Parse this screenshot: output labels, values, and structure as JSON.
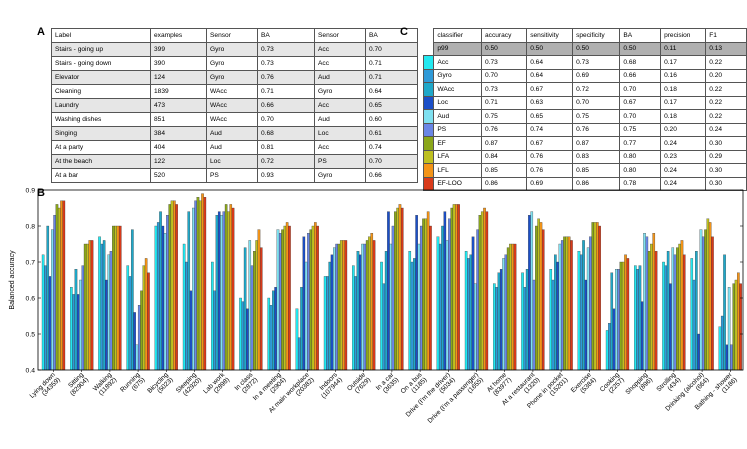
{
  "panel_labels": {
    "a": "A",
    "b": "B",
    "c": "C"
  },
  "table_a": {
    "headers": [
      "Label",
      "examples",
      "Sensor",
      "BA",
      "Sensor",
      "BA"
    ],
    "rows": [
      [
        "Stairs - going up",
        "399",
        "Gyro",
        "0.73",
        "Acc",
        "0.70"
      ],
      [
        "Stairs - going down",
        "390",
        "Gyro",
        "0.73",
        "Acc",
        "0.71"
      ],
      [
        "Elevator",
        "124",
        "Gyro",
        "0.76",
        "Aud",
        "0.71"
      ],
      [
        "Cleaning",
        "1839",
        "WAcc",
        "0.71",
        "Gyro",
        "0.64"
      ],
      [
        "Laundry",
        "473",
        "WAcc",
        "0.66",
        "Acc",
        "0.65"
      ],
      [
        "Washing dishes",
        "851",
        "WAcc",
        "0.70",
        "Aud",
        "0.60"
      ],
      [
        "Singing",
        "384",
        "Aud",
        "0.68",
        "Loc",
        "0.61"
      ],
      [
        "At a party",
        "404",
        "Aud",
        "0.81",
        "Acc",
        "0.74"
      ],
      [
        "At the beach",
        "122",
        "Loc",
        "0.72",
        "PS",
        "0.70"
      ],
      [
        "At a bar",
        "520",
        "PS",
        "0.93",
        "Gyro",
        "0.66"
      ]
    ]
  },
  "table_c": {
    "headers": [
      "classifier",
      "accuracy",
      "sensitivity",
      "specificity",
      "BA",
      "precision",
      "F1"
    ],
    "rows": [
      {
        "name": "p99",
        "color": "",
        "values": [
          "0.50",
          "0.50",
          "0.50",
          "0.50",
          "0.11",
          "0.13"
        ]
      },
      {
        "name": "Acc",
        "color": "#22e8f0",
        "values": [
          "0.73",
          "0.64",
          "0.73",
          "0.68",
          "0.17",
          "0.22"
        ]
      },
      {
        "name": "Gyro",
        "color": "#2f9ad8",
        "values": [
          "0.70",
          "0.64",
          "0.69",
          "0.66",
          "0.16",
          "0.20"
        ]
      },
      {
        "name": "WAcc",
        "color": "#1fa8c9",
        "values": [
          "0.73",
          "0.67",
          "0.72",
          "0.70",
          "0.18",
          "0.22"
        ]
      },
      {
        "name": "Loc",
        "color": "#1b4fc8",
        "values": [
          "0.71",
          "0.63",
          "0.70",
          "0.67",
          "0.17",
          "0.22"
        ]
      },
      {
        "name": "Aud",
        "color": "#7fe0f0",
        "values": [
          "0.75",
          "0.65",
          "0.75",
          "0.70",
          "0.18",
          "0.22"
        ]
      },
      {
        "name": "PS",
        "color": "#6a86e6",
        "values": [
          "0.76",
          "0.74",
          "0.76",
          "0.75",
          "0.20",
          "0.24"
        ]
      },
      {
        "name": "EF",
        "color": "#8aa61a",
        "values": [
          "0.87",
          "0.67",
          "0.87",
          "0.77",
          "0.24",
          "0.30"
        ]
      },
      {
        "name": "LFA",
        "color": "#bec020",
        "values": [
          "0.84",
          "0.76",
          "0.83",
          "0.80",
          "0.23",
          "0.29"
        ]
      },
      {
        "name": "LFL",
        "color": "#f39418",
        "values": [
          "0.85",
          "0.76",
          "0.85",
          "0.80",
          "0.24",
          "0.30"
        ]
      },
      {
        "name": "EF-LOO",
        "color": "#d93a1a",
        "values": [
          "0.86",
          "0.69",
          "0.86",
          "0.78",
          "0.24",
          "0.30"
        ]
      }
    ]
  },
  "chart_data": {
    "type": "bar",
    "title": "",
    "xlabel": "",
    "ylabel": "Balanced accuracy",
    "ylim": [
      0.4,
      0.9
    ],
    "yticks": [
      "0.4",
      "0.5",
      "0.6",
      "0.7",
      "0.8",
      "0.9"
    ],
    "grid": false,
    "series_names": [
      "Acc",
      "Gyro",
      "WAcc",
      "Loc",
      "Aud",
      "PS",
      "EF",
      "LFA",
      "LFL",
      "EF-LOO"
    ],
    "series_colors": [
      "#22e8f0",
      "#2f9ad8",
      "#1fa8c9",
      "#1b4fc8",
      "#7fe0f0",
      "#6a86e6",
      "#8aa61a",
      "#bec020",
      "#f39418",
      "#d93a1a"
    ],
    "categories": [
      {
        "label": "Lying down",
        "count": "(34359)",
        "values": [
          0.72,
          0.69,
          0.8,
          0.66,
          0.79,
          0.83,
          0.86,
          0.85,
          0.87,
          0.87
        ]
      },
      {
        "label": "Sitting",
        "count": "(82904)",
        "values": [
          0.63,
          0.61,
          0.68,
          0.61,
          0.65,
          0.69,
          0.75,
          0.75,
          0.76,
          0.76
        ]
      },
      {
        "label": "Walking",
        "count": "(11892)",
        "values": [
          0.77,
          0.75,
          0.76,
          0.65,
          0.72,
          0.73,
          0.8,
          0.8,
          0.8,
          0.8
        ]
      },
      {
        "label": "Running",
        "count": "(675)",
        "values": [
          0.69,
          0.66,
          0.79,
          0.56,
          0.47,
          0.58,
          0.62,
          0.69,
          0.71,
          0.67
        ]
      },
      {
        "label": "Bicycling",
        "count": "(5023)",
        "values": [
          0.8,
          0.81,
          0.84,
          0.8,
          0.78,
          0.83,
          0.86,
          0.87,
          0.87,
          0.86
        ]
      },
      {
        "label": "Sleeping",
        "count": "(42920)",
        "values": [
          0.75,
          0.7,
          0.84,
          0.62,
          0.85,
          0.87,
          0.88,
          0.87,
          0.89,
          0.88
        ]
      },
      {
        "label": "Lab work",
        "count": "(2898)",
        "values": [
          0.7,
          0.62,
          0.83,
          0.84,
          0.83,
          0.84,
          0.86,
          0.84,
          0.86,
          0.85
        ]
      },
      {
        "label": "In class",
        "count": "(2872)",
        "values": [
          0.6,
          0.59,
          0.74,
          0.57,
          0.76,
          0.69,
          0.73,
          0.76,
          0.79,
          0.74
        ]
      },
      {
        "label": "In a meeting",
        "count": "(2904)",
        "values": [
          0.6,
          0.58,
          0.62,
          0.63,
          0.79,
          0.78,
          0.79,
          0.8,
          0.81,
          0.8
        ]
      },
      {
        "label": "At main workplace",
        "count": "(20382)",
        "values": [
          0.57,
          0.49,
          0.63,
          0.77,
          0.7,
          0.78,
          0.79,
          0.8,
          0.81,
          0.8
        ]
      },
      {
        "label": "Indoors",
        "count": "(107944)",
        "values": [
          0.66,
          0.66,
          0.7,
          0.72,
          0.74,
          0.75,
          0.75,
          0.76,
          0.76,
          0.76
        ]
      },
      {
        "label": "Outside",
        "count": "(7629)",
        "values": [
          0.69,
          0.66,
          0.73,
          0.72,
          0.75,
          0.75,
          0.76,
          0.77,
          0.78,
          0.76
        ]
      },
      {
        "label": "In a car",
        "count": "(3635)",
        "values": [
          0.7,
          0.64,
          0.73,
          0.84,
          0.75,
          0.8,
          0.84,
          0.85,
          0.86,
          0.85
        ]
      },
      {
        "label": "On a bus",
        "count": "(1185)",
        "values": [
          0.73,
          0.7,
          0.71,
          0.83,
          0.75,
          0.8,
          0.82,
          0.82,
          0.84,
          0.8
        ]
      },
      {
        "label": "Drive (I'm the driver)",
        "count": "(5034)",
        "values": [
          0.77,
          0.75,
          0.8,
          0.84,
          0.76,
          0.82,
          0.85,
          0.86,
          0.86,
          0.86
        ]
      },
      {
        "label": "Drive (I'm a passenger)",
        "count": "(1655)",
        "values": [
          0.73,
          0.71,
          0.72,
          0.77,
          0.64,
          0.79,
          0.83,
          0.84,
          0.85,
          0.84
        ]
      },
      {
        "label": "At home",
        "count": "(83977)",
        "values": [
          0.64,
          0.63,
          0.67,
          0.68,
          0.71,
          0.72,
          0.74,
          0.75,
          0.75,
          0.75
        ]
      },
      {
        "label": "At a restaurant",
        "count": "(1320)",
        "values": [
          0.67,
          0.63,
          0.68,
          0.83,
          0.84,
          0.65,
          0.8,
          0.82,
          0.81,
          0.79
        ]
      },
      {
        "label": "Phone in pocket",
        "count": "(15201)",
        "values": [
          0.68,
          0.65,
          0.72,
          0.7,
          0.75,
          0.76,
          0.77,
          0.77,
          0.77,
          0.76
        ]
      },
      {
        "label": "Exercise",
        "count": "(5384)",
        "values": [
          0.73,
          0.72,
          0.76,
          0.65,
          0.74,
          0.77,
          0.81,
          0.81,
          0.81,
          0.8
        ]
      },
      {
        "label": "Cooking",
        "count": "(2257)",
        "values": [
          0.51,
          0.53,
          0.67,
          0.57,
          0.68,
          0.68,
          0.7,
          0.7,
          0.72,
          0.71
        ]
      },
      {
        "label": "Shopping",
        "count": "(896)",
        "values": [
          0.69,
          0.68,
          0.69,
          0.59,
          0.78,
          0.77,
          0.73,
          0.75,
          0.78,
          0.73
        ]
      },
      {
        "label": "Strolling",
        "count": "(434)",
        "values": [
          0.7,
          0.69,
          0.73,
          0.64,
          0.74,
          0.72,
          0.74,
          0.75,
          0.76,
          0.72
        ]
      },
      {
        "label": "Drinking (alcohol)",
        "count": "(664)",
        "values": [
          0.71,
          0.65,
          0.73,
          0.5,
          0.79,
          0.77,
          0.79,
          0.82,
          0.81,
          0.77
        ]
      },
      {
        "label": "Bathing - shower",
        "count": "(1186)",
        "values": [
          0.52,
          0.55,
          0.72,
          0.47,
          0.63,
          0.47,
          0.64,
          0.65,
          0.67,
          0.64
        ]
      }
    ]
  }
}
